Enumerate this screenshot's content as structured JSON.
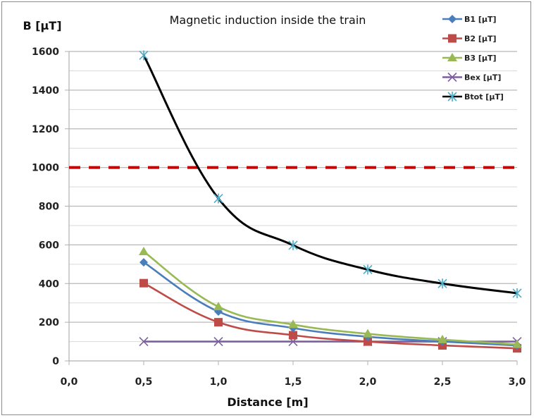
{
  "chart_data": {
    "type": "line",
    "title": "Magnetic induction inside the train",
    "xlabel": "Distance [m]",
    "ylabel": "B [µT]",
    "xlim": [
      0,
      3
    ],
    "ylim": [
      0,
      1600
    ],
    "x_ticks": [
      "0,0",
      "0,5",
      "1,0",
      "1,5",
      "2,0",
      "2,5",
      "3,0"
    ],
    "x_tick_values": [
      0,
      0.5,
      1,
      1.5,
      2,
      2.5,
      3
    ],
    "y_ticks": [
      "0",
      "200",
      "400",
      "600",
      "800",
      "1000",
      "1200",
      "1400",
      "1600"
    ],
    "y_tick_values": [
      0,
      200,
      400,
      600,
      800,
      1000,
      1200,
      1400,
      1600
    ],
    "grid": true,
    "minor_grid_step": 100,
    "legend_position": "top-right",
    "x": [
      0.5,
      1.0,
      1.5,
      2.0,
      2.5,
      3.0
    ],
    "series": [
      {
        "name": "B1 [µT]",
        "color": "#4a7ebb",
        "marker": "diamond",
        "values": [
          510,
          255,
          170,
          125,
          100,
          80
        ]
      },
      {
        "name": "B2 [µT]",
        "color": "#be4b48",
        "marker": "square",
        "values": [
          402,
          200,
          133,
          100,
          80,
          65
        ]
      },
      {
        "name": "B3 [µT]",
        "color": "#98b954",
        "marker": "triangle",
        "values": [
          565,
          280,
          188,
          140,
          110,
          85
        ]
      },
      {
        "name": "Bex [µT]",
        "color": "#7d5fa0",
        "marker": "x",
        "values": [
          100,
          100,
          100,
          100,
          100,
          100
        ]
      },
      {
        "name": "Btot [µT]",
        "color": "#000000",
        "marker_color": "#4bacc6",
        "marker": "star",
        "values": [
          1580,
          840,
          598,
          472,
          400,
          350
        ]
      }
    ],
    "reference_line": {
      "value": 1000,
      "color": "#c00000",
      "style": "dashed"
    }
  }
}
